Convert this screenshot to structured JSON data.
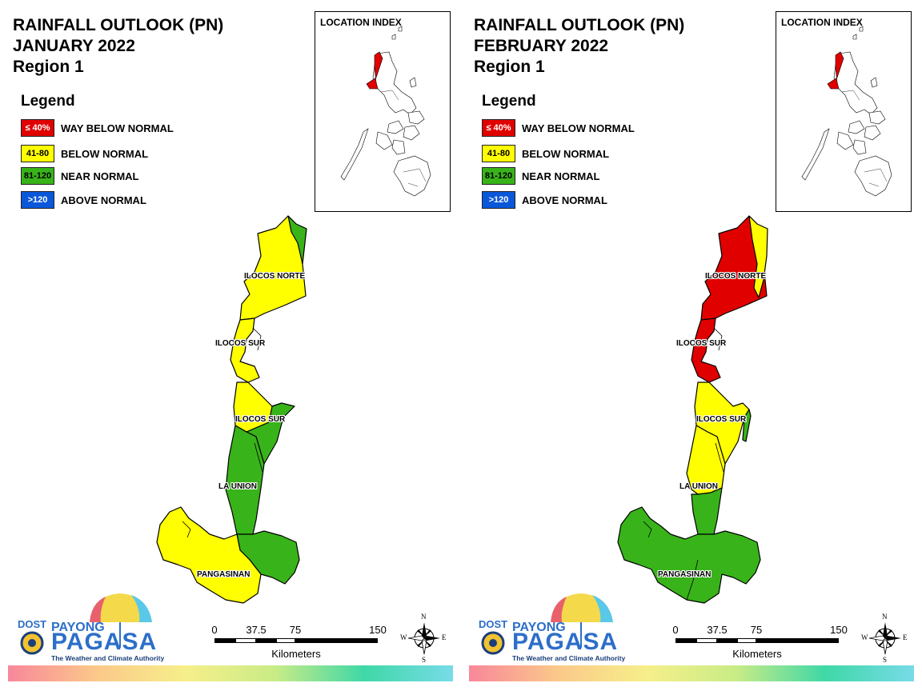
{
  "panels": [
    {
      "title_line1": "RAINFALL OUTLOOK (PN)",
      "title_line2": "JANUARY 2022",
      "title_line3": "Region 1",
      "province_fills": {
        "ilocos_norte": "#ffff00",
        "ilocos_norte_east": "#39b31a",
        "ilocos_sur": "#ffff00",
        "ilocos_sur_south": "#ffff00",
        "ilocos_sur_east": "#39b31a",
        "la_union": "#39b31a",
        "pangasinan_west": "#ffff00",
        "pangasinan_east": "#39b31a"
      }
    },
    {
      "title_line1": "RAINFALL OUTLOOK (PN)",
      "title_line2": "FEBRUARY 2022",
      "title_line3": "Region 1",
      "province_fills": {
        "ilocos_norte": "#e00000",
        "ilocos_norte_east": "#ffff00",
        "ilocos_sur": "#e00000",
        "ilocos_sur_south": "#ffff00",
        "ilocos_sur_east": "#39b31a",
        "la_union": "#ffff00",
        "pangasinan_west": "#39b31a",
        "pangasinan_east": "#39b31a"
      }
    }
  ],
  "legend": {
    "heading": "Legend",
    "items": [
      {
        "range": "≤ 40%",
        "label": "WAY BELOW NORMAL",
        "color": "#e00000"
      },
      {
        "range": "41-80",
        "label": "BELOW NORMAL",
        "color": "#ffff00"
      },
      {
        "range": "81-120",
        "label": "NEAR NORMAL",
        "color": "#39b31a"
      },
      {
        "range": ">120",
        "label": "ABOVE NORMAL",
        "color": "#0a57d9"
      }
    ]
  },
  "location_index": {
    "title": "LOCATION INDEX",
    "highlight_color": "#e00000"
  },
  "map_labels": {
    "ilocos_norte": "ILOCOS NORTE",
    "ilocos_sur_north": "ILOCOS SUR",
    "ilocos_sur_south": "ILOCOS SUR",
    "la_union": "LA UNION",
    "pangasinan": "PANGASINAN"
  },
  "scale_bar": {
    "ticks": [
      "0",
      "37.5",
      "75",
      "150"
    ],
    "units": "Kilometers"
  },
  "compass": {
    "n": "N",
    "s": "S",
    "e": "E",
    "w": "W"
  },
  "logo": {
    "dost": "DOST",
    "payong": "PAYONG",
    "pagasa": "PAGASA",
    "tagline": "The Weather and Climate Authority"
  }
}
